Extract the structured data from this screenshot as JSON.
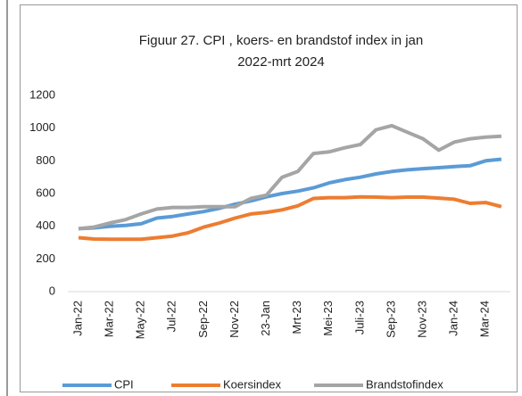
{
  "chart_data": {
    "type": "line",
    "title": [
      "Figuur 27. CPI , koers- en brandstof index in jan",
      "2022-mrt 2024"
    ],
    "categories": [
      "Jan-22",
      null,
      "Mar-22",
      null,
      "May-22",
      null,
      "Jul-22",
      null,
      "Sep-22",
      null,
      "Nov-22",
      null,
      "23-Jan",
      null,
      "Mrt-23",
      null,
      "Mei-23",
      null,
      "Juli-23",
      null,
      "Sep-23",
      null,
      "Nov-23",
      null,
      "Jan-24",
      null,
      "Mar-24",
      null
    ],
    "series": [
      {
        "name": "CPI",
        "color": "#5b9bd5",
        "values": [
          385,
          390,
          400,
          405,
          415,
          450,
          460,
          475,
          490,
          510,
          535,
          555,
          580,
          600,
          615,
          635,
          665,
          685,
          700,
          720,
          735,
          745,
          752,
          758,
          765,
          770,
          800,
          810
        ]
      },
      {
        "name": "Koersindex",
        "color": "#ed7d31",
        "values": [
          330,
          322,
          320,
          320,
          320,
          330,
          340,
          360,
          395,
          420,
          450,
          475,
          485,
          500,
          525,
          570,
          575,
          575,
          580,
          578,
          575,
          578,
          578,
          572,
          565,
          540,
          545,
          520
        ]
      },
      {
        "name": "Brandstofindex",
        "color": "#a5a5a5",
        "values": [
          385,
          395,
          420,
          440,
          475,
          505,
          515,
          515,
          520,
          520,
          520,
          570,
          590,
          700,
          735,
          845,
          855,
          880,
          900,
          990,
          1015,
          975,
          935,
          865,
          915,
          935,
          945,
          950
        ]
      }
    ],
    "ylim": [
      0,
      1200
    ],
    "yticks": [
      0,
      200,
      400,
      600,
      800,
      1000,
      1200
    ],
    "legend": "bottom"
  }
}
